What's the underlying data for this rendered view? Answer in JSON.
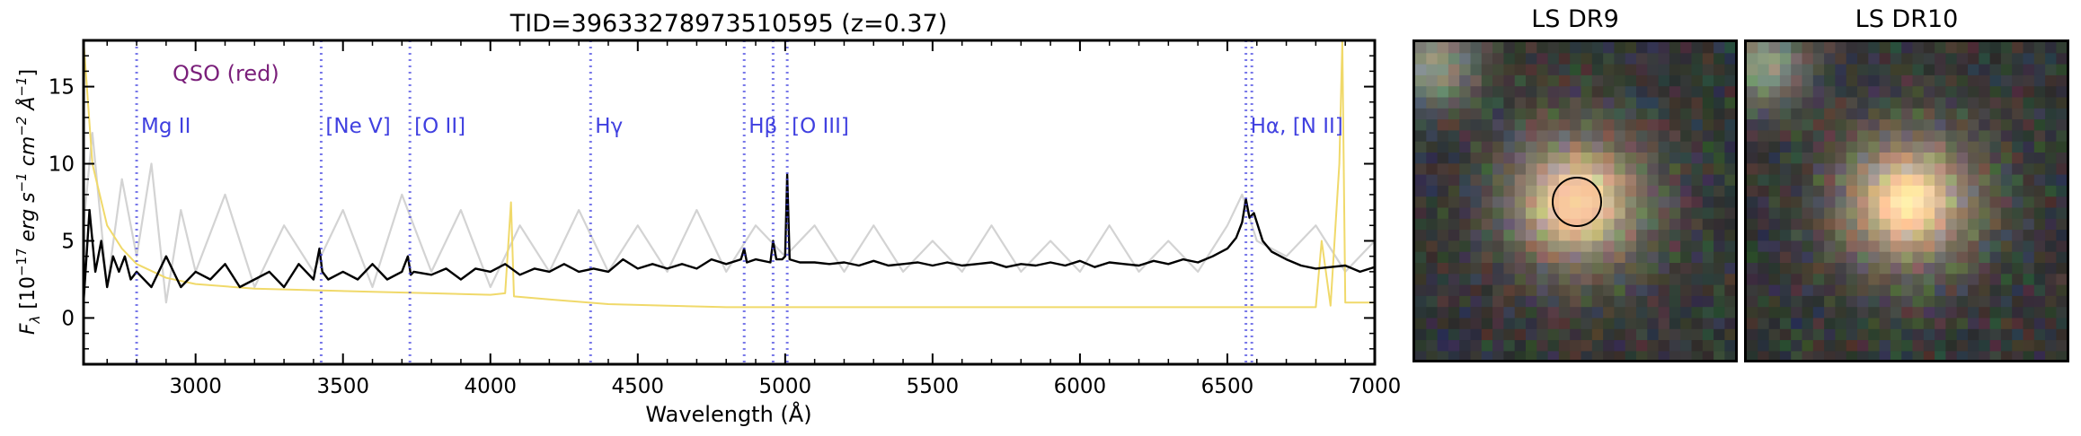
{
  "chart_data": {
    "type": "line",
    "title": "TID=39633278973510595 (z=0.37)",
    "xlabel": "Wavelength (Å)",
    "ylabel": "F_λ [10^-17 erg s^-1 cm^-2 Å^-1]",
    "ylabel_parts": {
      "prefix": "F",
      "prefix_sub": "λ",
      "open": " [10",
      "exp1": "−17",
      "units": " erg s",
      "exp2": "−1",
      "units2": " cm",
      "exp3": "−2",
      "units3": " Å",
      "exp4": "−1",
      "close": "]"
    },
    "xlim": [
      2620,
      7000
    ],
    "ylim": [
      -3,
      18
    ],
    "xticks": [
      3000,
      3500,
      4000,
      4500,
      5000,
      5500,
      6000,
      6500,
      7000
    ],
    "yticks": [
      0,
      5,
      10,
      15
    ],
    "annotation": "QSO (red)",
    "annotation_color": "#7a1f7a",
    "line_color": "#4040e0",
    "emission_lines": [
      {
        "label": "Mg II",
        "wavelength": 2800
      },
      {
        "label": "[Ne V]",
        "wavelength": 3426
      },
      {
        "label": "[O II]",
        "wavelength": 3727
      },
      {
        "label": "Hγ",
        "wavelength": 4340
      },
      {
        "label": "Hβ",
        "wavelength": 4861
      },
      {
        "label": "",
        "wavelength": 4959
      },
      {
        "label": "[O III]",
        "wavelength": 5007
      },
      {
        "label": "Hα, [N II]",
        "wavelength": 6563
      },
      {
        "label": "",
        "wavelength": 6583
      }
    ],
    "series": [
      {
        "color": "#d3d3d3",
        "x": [
          2620,
          2650,
          2700,
          2750,
          2800,
          2850,
          2900,
          2950,
          3000,
          3100,
          3200,
          3300,
          3400,
          3500,
          3600,
          3700,
          3800,
          3900,
          4000,
          4100,
          4200,
          4300,
          4400,
          4500,
          4600,
          4700,
          4800,
          4900,
          5000,
          5100,
          5200,
          5300,
          5400,
          5500,
          5600,
          5700,
          5800,
          5900,
          6000,
          6100,
          6200,
          6300,
          6400,
          6500,
          6550,
          6600,
          6700,
          6800,
          6900,
          7000
        ],
        "y": [
          6,
          12,
          2,
          9,
          4,
          10,
          1,
          7,
          3,
          8,
          2,
          6,
          3,
          7,
          2,
          8,
          3,
          7,
          2,
          6,
          3,
          7,
          3,
          6,
          3,
          7,
          3,
          6,
          4,
          6,
          3,
          6,
          3,
          5,
          3,
          6,
          3,
          5,
          3,
          6,
          3,
          5,
          3,
          6,
          8,
          5,
          4,
          6,
          3,
          5
        ]
      },
      {
        "color": "#f0d96a",
        "x": [
          2620,
          2650,
          2700,
          2750,
          2800,
          2900,
          3000,
          3200,
          3400,
          3600,
          3800,
          4000,
          4050,
          4070,
          4080,
          4200,
          4400,
          4600,
          4800,
          5000,
          5500,
          6000,
          6500,
          6800,
          6820,
          6850,
          6880,
          6890,
          6900,
          7000
        ],
        "y": [
          18,
          10,
          6,
          4.5,
          3.5,
          2.6,
          2.2,
          1.9,
          1.8,
          1.7,
          1.6,
          1.5,
          1.6,
          7.5,
          1.4,
          1.2,
          0.9,
          0.8,
          0.7,
          0.7,
          0.7,
          0.7,
          0.7,
          0.7,
          5,
          0.8,
          10,
          18,
          1,
          1
        ]
      },
      {
        "color": "#000000",
        "x": [
          2620,
          2640,
          2660,
          2680,
          2700,
          2720,
          2740,
          2760,
          2780,
          2800,
          2850,
          2900,
          2950,
          3000,
          3050,
          3100,
          3150,
          3200,
          3250,
          3300,
          3350,
          3400,
          3420,
          3430,
          3450,
          3500,
          3550,
          3600,
          3650,
          3700,
          3720,
          3730,
          3740,
          3800,
          3850,
          3900,
          3950,
          4000,
          4050,
          4100,
          4150,
          4200,
          4250,
          4300,
          4350,
          4400,
          4450,
          4500,
          4550,
          4600,
          4650,
          4700,
          4750,
          4800,
          4850,
          4861,
          4870,
          4900,
          4950,
          4959,
          4970,
          4990,
          5000,
          5007,
          5015,
          5050,
          5100,
          5150,
          5200,
          5250,
          5300,
          5350,
          5400,
          5450,
          5500,
          5550,
          5600,
          5650,
          5700,
          5750,
          5800,
          5850,
          5900,
          5950,
          6000,
          6050,
          6100,
          6150,
          6200,
          6250,
          6300,
          6350,
          6400,
          6450,
          6500,
          6530,
          6550,
          6563,
          6575,
          6590,
          6620,
          6650,
          6700,
          6750,
          6800,
          6850,
          6900,
          6950,
          7000
        ],
        "y": [
          1,
          7,
          3,
          5,
          2,
          4,
          3,
          4,
          2.5,
          3,
          2,
          4,
          2,
          3,
          2.5,
          3.5,
          2,
          2.5,
          3,
          2,
          3.5,
          2.5,
          4.5,
          3,
          2.5,
          3,
          2.5,
          3.5,
          2.5,
          3,
          4,
          2.8,
          3,
          2.8,
          3.2,
          2.5,
          3.2,
          3,
          3.5,
          2.8,
          3.2,
          3,
          3.5,
          3,
          3.2,
          3,
          3.8,
          3.2,
          3.5,
          3.2,
          3.5,
          3.2,
          3.8,
          3.5,
          3.8,
          4.5,
          3.6,
          3.8,
          3.6,
          5,
          3.8,
          3.8,
          4,
          9.3,
          3.8,
          3.6,
          3.6,
          3.5,
          3.6,
          3.4,
          3.7,
          3.4,
          3.5,
          3.6,
          3.4,
          3.6,
          3.4,
          3.5,
          3.6,
          3.3,
          3.5,
          3.4,
          3.6,
          3.4,
          3.7,
          3.3,
          3.6,
          3.5,
          3.4,
          3.7,
          3.5,
          3.8,
          3.6,
          4,
          4.5,
          5.2,
          6.2,
          7.7,
          6.5,
          6.8,
          5,
          4.3,
          3.8,
          3.4,
          3.2,
          3.3,
          3.4,
          3,
          3.3
        ]
      }
    ]
  },
  "cutouts": [
    {
      "title": "LS DR9",
      "show_aperture": true
    },
    {
      "title": "LS DR10",
      "show_aperture": false
    }
  ],
  "colors": {
    "aperture": "#000000",
    "source_core": "#f2b592",
    "background": "#2b2e2c"
  }
}
